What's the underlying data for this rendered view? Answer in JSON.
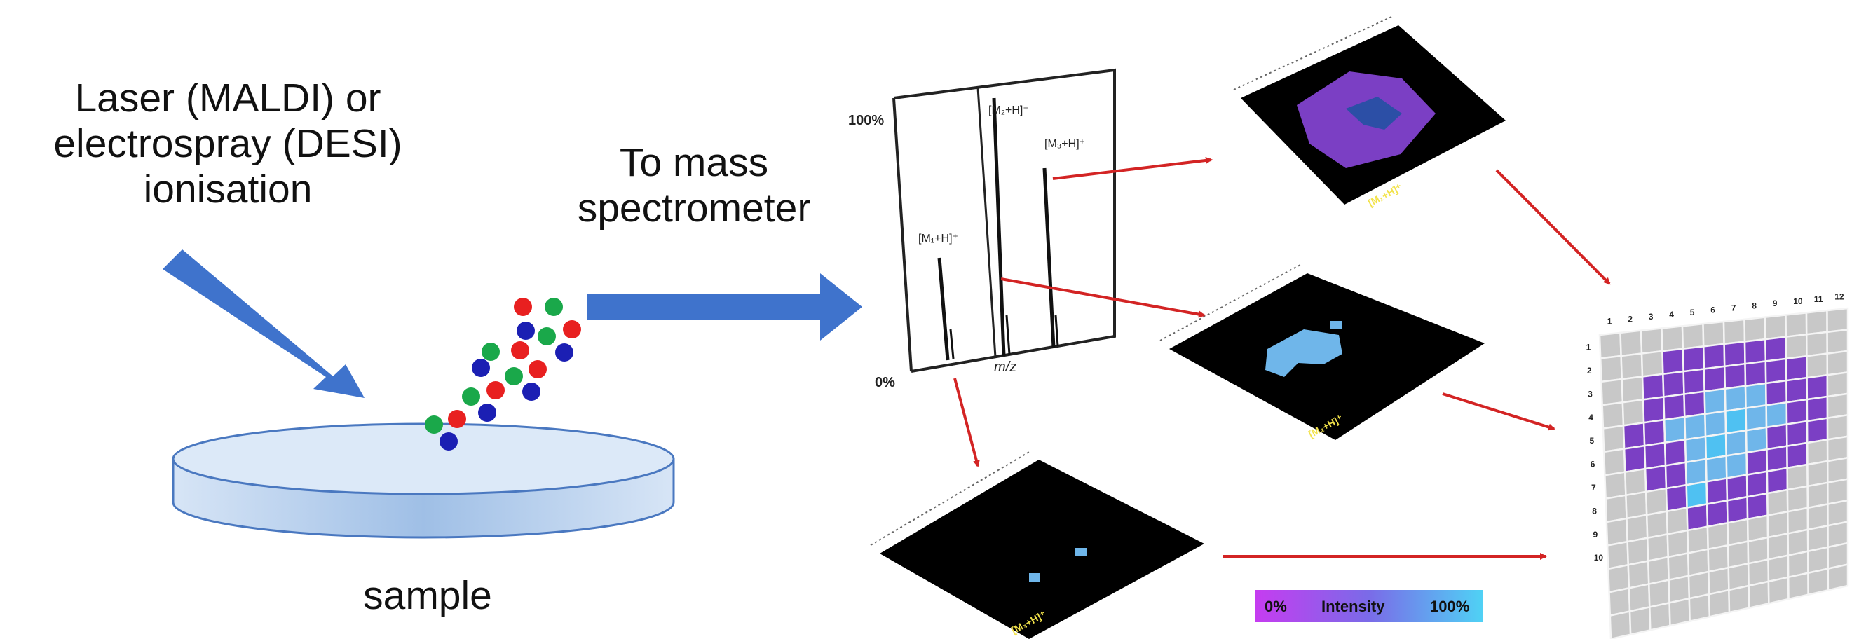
{
  "labels": {
    "ionisation_line1": "Laser (MALDI) or",
    "ionisation_line2": "electrospray (DESI)",
    "ionisation_line3": "ionisation",
    "ms_line1": "To mass",
    "ms_line2": "spectrometer",
    "sample": "sample"
  },
  "spectrum": {
    "y_top": "100%",
    "y_bottom": "0%",
    "x_label": "m/z",
    "peak1": "[M₁+H]⁺",
    "peak2": "[M₂+H]⁺",
    "peak3": "[M₃+H]⁺"
  },
  "maps": {
    "top": "[M₁+H]⁺",
    "middle": "[M₂+H]⁺",
    "bottom": "[M₃+H]⁺"
  },
  "intensity_scale": {
    "low": "0%",
    "title": "Intensity",
    "high": "100%"
  },
  "grid_axis": {
    "columns": [
      "1",
      "2",
      "3",
      "4",
      "5",
      "6",
      "7",
      "8",
      "9",
      "10",
      "11",
      "12"
    ],
    "rows": [
      "1",
      "2",
      "3",
      "4",
      "5",
      "6",
      "7",
      "8",
      "9",
      "10"
    ]
  },
  "colors": {
    "blue_arrow": "#3f73cc",
    "red_arrow": "#d32424",
    "purple": "#7b3fc4",
    "light_blue": "#6fb6ea",
    "cyan": "#4fc1f2",
    "droplet_red": "#e82020",
    "droplet_green": "#1aa84a",
    "droplet_blue": "#1b1fb3"
  }
}
